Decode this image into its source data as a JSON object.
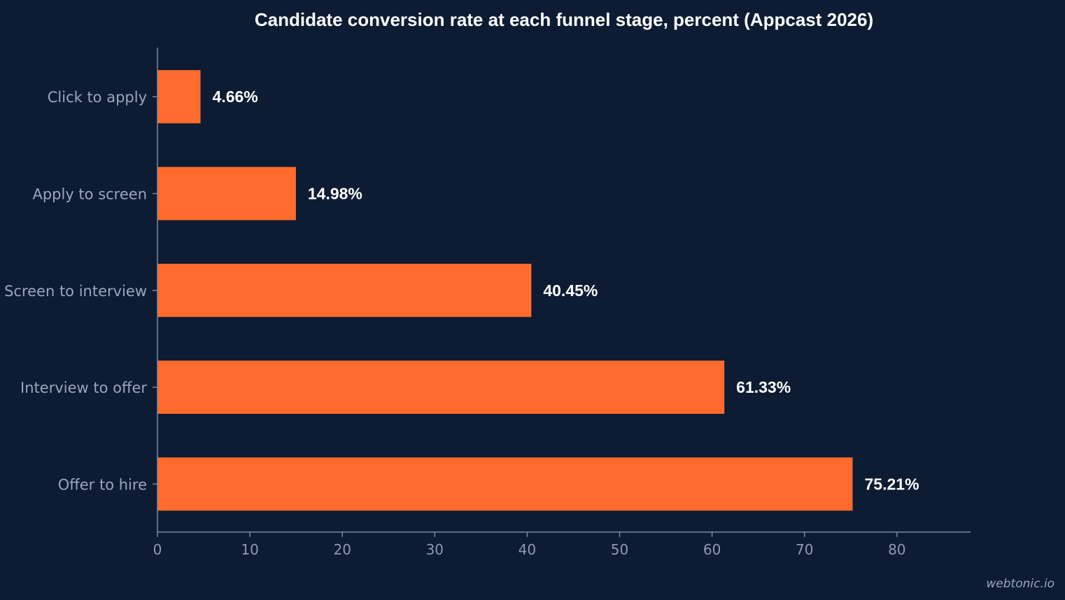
{
  "chart_data": {
    "type": "bar",
    "orientation": "horizontal",
    "title": "Candidate conversion rate at each funnel stage, percent (Appcast 2026)",
    "xlabel": "",
    "ylabel": "",
    "categories": [
      "Click to apply",
      "Apply to screen",
      "Screen to interview",
      "Interview to offer",
      "Offer to hire"
    ],
    "values": [
      4.66,
      14.98,
      40.45,
      61.33,
      75.21
    ],
    "data_labels": [
      "4.66%",
      "14.98%",
      "40.45%",
      "61.33%",
      "75.21%"
    ],
    "xlim": [
      0,
      88
    ],
    "xticks": [
      0,
      10,
      20,
      30,
      40,
      50,
      60,
      70,
      80
    ],
    "grid": false,
    "legend": "none",
    "colors": {
      "background": "#0d1b33",
      "bar": "#ff6b2c",
      "axis": "#7d8aa3"
    }
  },
  "watermark": "webtonic.io"
}
